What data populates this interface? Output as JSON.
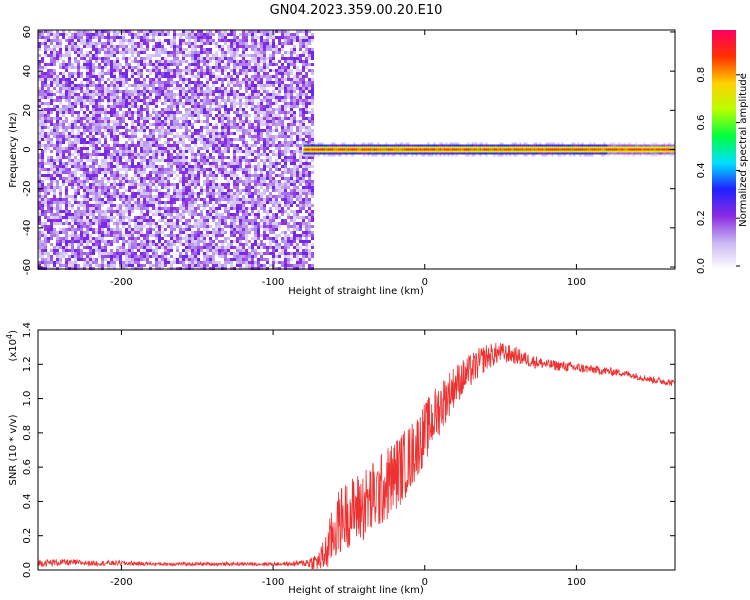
{
  "title": "GN04.2023.359.00.20.E10",
  "chart_data": [
    {
      "type": "heatmap",
      "xlabel": "Height of straight line (km)",
      "ylabel": "Frequency (Hz)",
      "xlim": [
        -255,
        165
      ],
      "ylim": [
        -61,
        61
      ],
      "xticks": [
        -200,
        -100,
        0,
        100
      ],
      "yticks": [
        60,
        40,
        20,
        0,
        -20,
        -40,
        -60
      ],
      "noise_region_x": [
        -255,
        -75
      ],
      "signal_band": {
        "x": [
          -80,
          165
        ],
        "frequency_center": 0,
        "frequency_halfwidth": 2,
        "peak_amplitude": 0.97
      },
      "colorbar": {
        "label": "Normalized spectral amplitude",
        "range": [
          0,
          1
        ],
        "ticks": [
          "0.0",
          "0.2",
          "0.4",
          "0.6",
          "0.8"
        ],
        "colors": [
          "#ffffff",
          "#c9b6f2",
          "#8a2be2",
          "#2020ff",
          "#00e0ff",
          "#00ff40",
          "#b8ff00",
          "#ffd000",
          "#ff3000",
          "#ff0060"
        ]
      }
    },
    {
      "type": "line",
      "xlabel": "Height of straight line (km)",
      "ylabel": "SNR (10 * v/v)",
      "yscale_label": "(x10",
      "yscale_exp": "4",
      "xlim": [
        -255,
        165
      ],
      "ylim": [
        0,
        1.4
      ],
      "xticks": [
        -200,
        -100,
        0,
        100
      ],
      "yticks": [
        "0.0",
        "0.2",
        "0.4",
        "0.6",
        "0.8",
        "1.0",
        "1.2",
        "1.4"
      ],
      "series": [
        {
          "color": "#ee3030",
          "x": [
            -255,
            -240,
            -220,
            -200,
            -180,
            -160,
            -140,
            -120,
            -100,
            -90,
            -80,
            -70,
            -65,
            -60,
            -55,
            -50,
            -40,
            -30,
            -20,
            -10,
            0,
            10,
            20,
            30,
            40,
            50,
            60,
            70,
            80,
            90,
            100,
            110,
            120,
            130,
            140,
            150,
            165
          ],
          "y": [
            0.04,
            0.045,
            0.04,
            0.04,
            0.035,
            0.035,
            0.035,
            0.035,
            0.035,
            0.035,
            0.04,
            0.05,
            0.1,
            0.22,
            0.3,
            0.33,
            0.38,
            0.45,
            0.55,
            0.65,
            0.8,
            0.95,
            1.08,
            1.16,
            1.24,
            1.27,
            1.25,
            1.22,
            1.2,
            1.19,
            1.18,
            1.17,
            1.16,
            1.15,
            1.13,
            1.11,
            1.09
          ],
          "noise": [
            0.02,
            0.02,
            0.015,
            0.015,
            0.01,
            0.01,
            0.01,
            0.01,
            0.01,
            0.01,
            0.02,
            0.06,
            0.12,
            0.18,
            0.2,
            0.2,
            0.22,
            0.22,
            0.22,
            0.2,
            0.18,
            0.16,
            0.12,
            0.1,
            0.08,
            0.06,
            0.05,
            0.04,
            0.03,
            0.03,
            0.03,
            0.025,
            0.025,
            0.02,
            0.02,
            0.02,
            0.02
          ]
        }
      ]
    }
  ]
}
